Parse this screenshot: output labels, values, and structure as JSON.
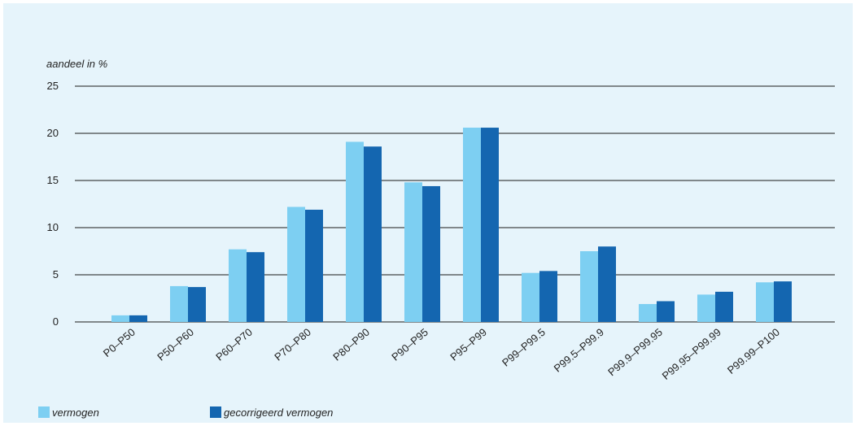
{
  "chart_data": {
    "type": "bar",
    "ylabel": "aandeel in %",
    "xlabel": "",
    "ylim": [
      0,
      25
    ],
    "yticks": [
      0,
      5,
      10,
      15,
      20,
      25
    ],
    "grid": "horizontal",
    "legend_position": "bottom-left",
    "categories": [
      "P0–P50",
      "P50–P60",
      "P60–P70",
      "P70–P80",
      "P80–P90",
      "P90–P95",
      "P95–P99",
      "P99–P99.5",
      "P99.5–P99.9",
      "P99.9–P99.95",
      "P99.95–P99.99",
      "P99.99–P100"
    ],
    "series": [
      {
        "name": "vermogen",
        "color": "#7dcff2",
        "values": [
          0.7,
          3.8,
          7.7,
          12.2,
          19.1,
          14.8,
          20.6,
          5.2,
          7.5,
          1.9,
          2.9,
          4.2
        ]
      },
      {
        "name": "gecorrigeerd vermogen",
        "color": "#1466b0",
        "values": [
          0.7,
          3.7,
          7.4,
          11.9,
          18.6,
          14.4,
          20.6,
          5.4,
          8.0,
          2.2,
          3.2,
          4.3
        ]
      }
    ]
  }
}
